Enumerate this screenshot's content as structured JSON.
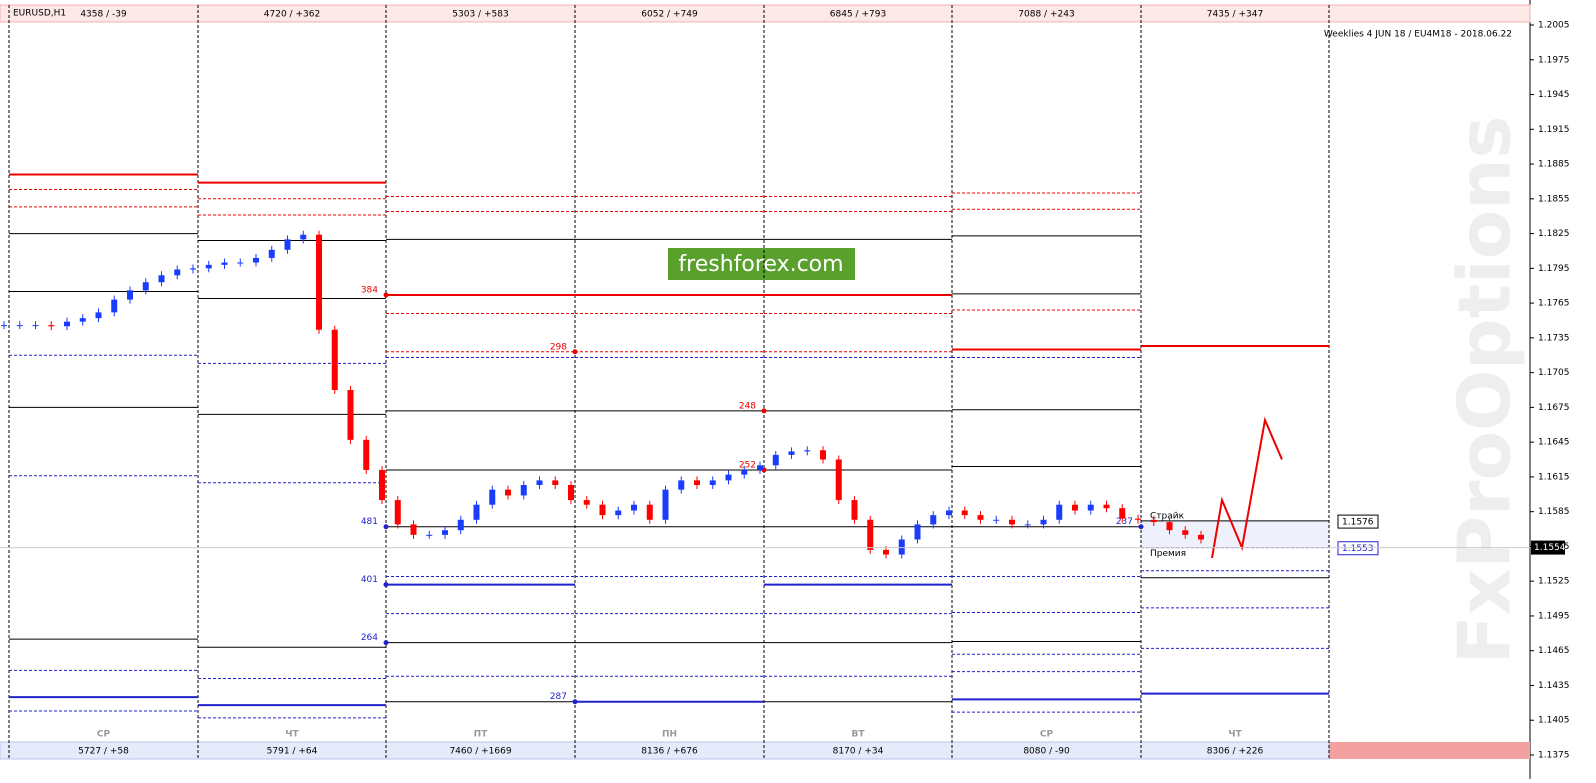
{
  "header": {
    "symbol": "EURUSD,H1",
    "info": "Weeklies 4 JUN 18 / EU4M18 - 2018.06.22",
    "cells": [
      "4358 / -39",
      "4720 / +362",
      "5303 / +583",
      "6052 / +749",
      "6845 / +793",
      "7088 / +243",
      "7435 / +347"
    ]
  },
  "footer": {
    "days": [
      "СР",
      "ЧТ",
      "ПТ",
      "ПН",
      "ВТ",
      "СР",
      "ЧТ"
    ],
    "cells": [
      "5727 / +58",
      "5791 / +64",
      "7460 / +1669",
      "8136 / +676",
      "8170 / +34",
      "8080 / -90",
      "8306 / +226"
    ]
  },
  "logo": "freshforex.com",
  "watermark": "FxProOptions",
  "axis": {
    "ylim": [
      1.1375,
      1.2005
    ],
    "yticks": [
      1.2005,
      1.1975,
      1.1945,
      1.1915,
      1.1885,
      1.1855,
      1.1825,
      1.1795,
      1.1765,
      1.1735,
      1.1705,
      1.1675,
      1.1645,
      1.1615,
      1.1585,
      1.1555,
      1.1525,
      1.1495,
      1.1465,
      1.1435,
      1.1405,
      1.1375
    ]
  },
  "current_price": 1.1554,
  "strike": {
    "label": "Страйк",
    "price": 1.1576
  },
  "premium": {
    "label": "Премия",
    "price": 1.1553
  },
  "levels": [
    {
      "red": [
        1.1876
      ],
      "red_dashed": [
        1.1863,
        1.1848
      ],
      "black": [
        1.1825,
        1.1775,
        1.1675,
        1.1475
      ],
      "blue_dashed": [
        1.172,
        1.1616,
        1.1448,
        1.1413
      ],
      "blue": [
        1.1425
      ]
    },
    {
      "red": [
        1.1869
      ],
      "red_dashed": [
        1.1855,
        1.1841
      ],
      "black": [
        1.1819,
        1.1769,
        1.1669,
        1.1468
      ],
      "blue_dashed": [
        1.1713,
        1.161,
        1.1441,
        1.1407
      ],
      "blue": [
        1.1418
      ]
    },
    {
      "red": [
        1.1772
      ],
      "red_dashed": [
        1.1857,
        1.1844,
        1.1756,
        1.1723
      ],
      "black": [
        1.182,
        1.1672,
        1.1621,
        1.1572,
        1.1472,
        1.1421
      ],
      "blue_dashed": [
        1.1718,
        1.1529,
        1.1497,
        1.1443
      ],
      "blue": [
        1.1522
      ]
    },
    {
      "red": [
        1.1772
      ],
      "red_dashed": [
        1.1857,
        1.1844,
        1.1756,
        1.1723
      ],
      "black": [
        1.182,
        1.1672,
        1.1621,
        1.1572,
        1.1472
      ],
      "blue_dashed": [
        1.1718,
        1.1529,
        1.1497,
        1.1443
      ],
      "blue": [
        1.1421
      ]
    },
    {
      "red": [
        1.1772
      ],
      "red_dashed": [
        1.1857,
        1.1844,
        1.1756,
        1.1723
      ],
      "black": [
        1.182,
        1.1672,
        1.1621,
        1.1572,
        1.1472,
        1.1421
      ],
      "blue_dashed": [
        1.1718,
        1.1529,
        1.1497,
        1.1443
      ],
      "blue": [
        1.1522
      ]
    },
    {
      "red": [
        1.1725
      ],
      "red_dashed": [
        1.186,
        1.1846,
        1.1759
      ],
      "black": [
        1.1823,
        1.1773,
        1.1673,
        1.1624,
        1.1572,
        1.1473
      ],
      "blue_dashed": [
        1.1718,
        1.1529,
        1.1498,
        1.1462,
        1.1447,
        1.1412
      ],
      "blue": [
        1.1423
      ]
    },
    {
      "red": [
        1.1728
      ],
      "black": [
        1.1577,
        1.1528
      ],
      "blue_dashed": [
        1.1554,
        1.1534,
        1.1502,
        1.1467
      ],
      "blue": [
        1.1428
      ]
    }
  ],
  "annotations": [
    {
      "label": 384,
      "price": 1.1772
    },
    {
      "label": 298,
      "price": 1.1723
    },
    {
      "label": 248,
      "price": 1.1672
    },
    {
      "label": 252,
      "price": 1.1621
    },
    {
      "label": 481,
      "price": 1.1572
    },
    {
      "label": 401,
      "price": 1.1522
    },
    {
      "label": 264,
      "price": 1.1472
    },
    {
      "label": 287,
      "price": 1.1421
    },
    {
      "label": 237,
      "price": 1.1572
    }
  ],
  "closes": [
    1.1746,
    1.1746,
    1.1746,
    1.1745,
    1.1749,
    1.1752,
    1.1757,
    1.1768,
    1.1776,
    1.1783,
    1.1789,
    1.1794,
    1.1795,
    1.1798,
    1.18,
    1.18,
    1.1804,
    1.1811,
    1.182,
    1.1824,
    1.1742,
    1.169,
    1.1647,
    1.1621,
    1.1595,
    1.1574,
    1.1565,
    1.1565,
    1.1569,
    1.1578,
    1.1591,
    1.1604,
    1.1599,
    1.1608,
    1.1612,
    1.1608,
    1.1595,
    1.1591,
    1.1582,
    1.1586,
    1.1591,
    1.1578,
    1.1604,
    1.1612,
    1.1608,
    1.1612,
    1.1617,
    1.1621,
    1.1625,
    1.1634,
    1.1637,
    1.1638,
    1.163,
    1.1595,
    1.1578,
    1.1552,
    1.1548,
    1.1561,
    1.1574,
    1.1582,
    1.1586,
    1.1582,
    1.1578,
    1.1578,
    1.1574,
    1.1574,
    1.1578,
    1.1591,
    1.1586,
    1.1591,
    1.1588,
    1.1579,
    1.1578,
    1.1576,
    1.1569,
    1.1565,
    1.1561
  ],
  "forecast": [
    1.1545,
    1.1595,
    1.1554,
    1.1664,
    1.163
  ]
}
